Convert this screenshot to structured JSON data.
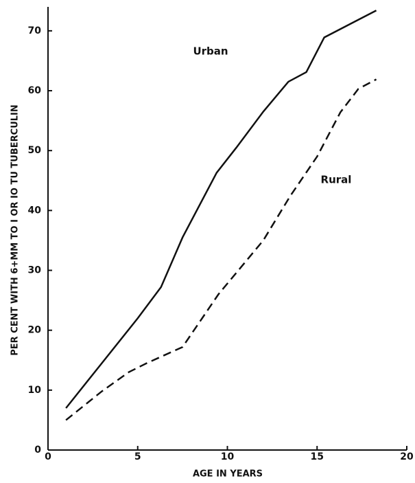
{
  "chart_data": {
    "type": "line",
    "x_label": "AGE IN YEARS",
    "y_label": "PER CENT WITH 6+MM TO I OR IO TU TUBERCULIN",
    "xlim": [
      0,
      20
    ],
    "xticks": [
      0,
      5,
      10,
      15,
      20
    ],
    "ylim": [
      0,
      74
    ],
    "yticks": [
      0,
      10,
      20,
      30,
      40,
      50,
      60,
      70
    ],
    "grid": false,
    "series": [
      {
        "name": "Urban",
        "color": "#111111",
        "dash": false,
        "x": [
          1,
          3,
          5,
          6.3,
          7.5,
          9.4,
          10.5,
          12,
          13.4,
          14.4,
          15.4,
          18.3
        ],
        "values": [
          7,
          14.5,
          22,
          27.2,
          35.5,
          46.3,
          50.5,
          56.5,
          61.5,
          63.1,
          68.9,
          73.4
        ]
      },
      {
        "name": "Rural",
        "color": "#111111",
        "dash": true,
        "x": [
          1,
          3,
          4.5,
          5.5,
          7.5,
          9.5,
          12,
          13.5,
          15,
          16.3,
          17.3,
          18.3
        ],
        "values": [
          5,
          9.8,
          13,
          14.5,
          17.2,
          26,
          35,
          42.4,
          49,
          56.4,
          60.3,
          61.9
        ]
      }
    ]
  }
}
